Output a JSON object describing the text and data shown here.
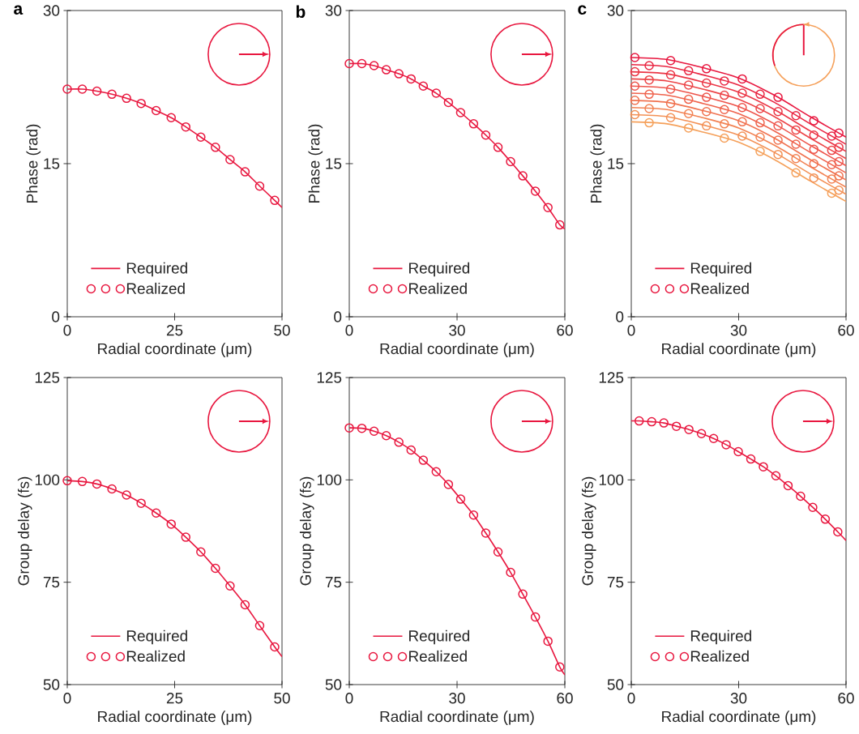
{
  "chart_data": [
    {
      "type": "line",
      "title": "a",
      "xlabel": "Radial coordinate (μm)",
      "ylabel": "Phase (rad)",
      "xlim": [
        0,
        50
      ],
      "ylim": [
        0,
        30
      ],
      "xticks": [
        0,
        25,
        50
      ],
      "yticks": [
        0,
        15,
        30
      ],
      "legend": "bottom left",
      "series": [
        {
          "name": "Required",
          "type": "line",
          "color": "#e8173f",
          "x": [
            0,
            3.5,
            6.9,
            10.4,
            13.8,
            17.2,
            20.7,
            24.2,
            27.6,
            31.1,
            34.5,
            37.9,
            41.4,
            44.8,
            48.3,
            50
          ],
          "values": [
            22.3,
            22.3,
            22.1,
            21.8,
            21.4,
            20.9,
            20.2,
            19.5,
            18.6,
            17.6,
            16.6,
            15.4,
            14.2,
            12.8,
            11.4,
            10.7
          ]
        },
        {
          "name": "Realized",
          "type": "scatter",
          "marker": "circle",
          "color": "#e8173f",
          "x": [
            0,
            3.5,
            6.9,
            10.4,
            13.8,
            17.2,
            20.7,
            24.2,
            27.6,
            31.1,
            34.5,
            37.9,
            41.4,
            44.8,
            48.3
          ],
          "values": [
            22.3,
            22.3,
            22.1,
            21.8,
            21.4,
            20.9,
            20.2,
            19.5,
            18.6,
            17.6,
            16.6,
            15.4,
            14.2,
            12.8,
            11.4
          ]
        }
      ]
    },
    {
      "type": "line",
      "title": "b",
      "xlabel": "Radial coordinate (μm)",
      "ylabel": "Phase (rad)",
      "xlim": [
        0,
        60
      ],
      "ylim": [
        0,
        30
      ],
      "xticks": [
        0,
        30,
        60
      ],
      "yticks": [
        0,
        15,
        30
      ],
      "legend": "bottom left",
      "series": [
        {
          "name": "Required",
          "type": "line",
          "color": "#e8173f",
          "x": [
            0,
            3.5,
            6.9,
            10.3,
            13.8,
            17.2,
            20.6,
            24.2,
            27.6,
            31.0,
            34.6,
            38.0,
            41.4,
            44.9,
            48.3,
            51.8,
            55.3,
            58.6,
            60
          ],
          "values": [
            24.8,
            24.8,
            24.6,
            24.2,
            23.8,
            23.3,
            22.6,
            21.9,
            21.0,
            20.0,
            18.9,
            17.8,
            16.6,
            15.2,
            13.8,
            12.3,
            10.7,
            9.0,
            8.6
          ]
        },
        {
          "name": "Realized",
          "type": "scatter",
          "marker": "circle",
          "color": "#e8173f",
          "x": [
            0,
            3.5,
            6.9,
            10.3,
            13.8,
            17.2,
            20.6,
            24.2,
            27.6,
            31.0,
            34.6,
            38.0,
            41.4,
            44.9,
            48.3,
            51.8,
            55.3,
            58.6
          ],
          "values": [
            24.8,
            24.8,
            24.6,
            24.2,
            23.8,
            23.3,
            22.6,
            21.9,
            21.0,
            20.0,
            18.9,
            17.8,
            16.6,
            15.2,
            13.8,
            12.3,
            10.7,
            9.0
          ]
        }
      ]
    },
    {
      "type": "line",
      "title": "c",
      "xlabel": "Radial coordinate (μm)",
      "ylabel": "Phase (rad)",
      "xlim": [
        0,
        60
      ],
      "ylim": [
        0,
        30
      ],
      "xticks": [
        0,
        30,
        60
      ],
      "yticks": [
        0,
        15,
        30
      ],
      "legend": "bottom left",
      "series": [
        {
          "name": "Required",
          "type": "line",
          "color": "#e8173f",
          "x": [
            0,
            10,
            20,
            30,
            40,
            50,
            60
          ],
          "values": [
            25.4,
            25.2,
            24.4,
            23.4,
            21.7,
            19.6,
            17.6
          ]
        },
        {
          "type": "line",
          "color": "#e92642",
          "x": [
            0,
            10,
            20,
            30,
            40,
            50,
            60
          ],
          "values": [
            24.7,
            24.5,
            23.7,
            22.7,
            21.0,
            18.9,
            16.9
          ]
        },
        {
          "type": "line",
          "color": "#eb3545",
          "x": [
            0,
            10,
            20,
            30,
            40,
            50,
            60
          ],
          "values": [
            24.0,
            23.8,
            23.0,
            22.0,
            20.3,
            18.2,
            16.2
          ]
        },
        {
          "type": "line",
          "color": "#ec4548",
          "x": [
            0,
            10,
            20,
            30,
            40,
            50,
            60
          ],
          "values": [
            23.3,
            23.1,
            22.3,
            21.3,
            19.6,
            17.5,
            15.5
          ]
        },
        {
          "type": "line",
          "color": "#ee544b",
          "x": [
            0,
            10,
            20,
            30,
            40,
            50,
            60
          ],
          "values": [
            22.6,
            22.4,
            21.6,
            20.6,
            18.9,
            16.8,
            14.8
          ]
        },
        {
          "type": "line",
          "color": "#ef634d",
          "x": [
            0,
            10,
            20,
            30,
            40,
            50,
            60
          ],
          "values": [
            21.9,
            21.7,
            20.9,
            19.9,
            18.2,
            16.1,
            14.1
          ]
        },
        {
          "type": "line",
          "color": "#f07250",
          "x": [
            0,
            10,
            20,
            30,
            40,
            50,
            60
          ],
          "values": [
            21.2,
            21.0,
            20.2,
            19.2,
            17.5,
            15.4,
            13.4
          ]
        },
        {
          "type": "line",
          "color": "#f28253",
          "x": [
            0,
            10,
            20,
            30,
            40,
            50,
            60
          ],
          "values": [
            20.5,
            20.3,
            19.5,
            18.5,
            16.8,
            14.7,
            12.7
          ]
        },
        {
          "type": "line",
          "color": "#f39156",
          "x": [
            0,
            10,
            20,
            30,
            40,
            50,
            60
          ],
          "values": [
            19.8,
            19.6,
            18.8,
            17.8,
            16.1,
            14.0,
            12.0
          ]
        },
        {
          "type": "line",
          "color": "#f5a05a",
          "x": [
            0,
            10,
            20,
            30,
            40,
            50,
            60
          ],
          "values": [
            19.1,
            18.9,
            18.1,
            17.1,
            15.4,
            13.3,
            11.3
          ]
        },
        {
          "name": "Realized",
          "type": "scatter",
          "marker": "circle",
          "color": "#e8173f",
          "x": [
            1,
            11,
            21,
            31,
            41,
            51,
            58
          ],
          "values": [
            25.4,
            25.1,
            24.3,
            23.3,
            21.5,
            19.2,
            18.0
          ]
        },
        {
          "type": "scatter",
          "marker": "circle",
          "color": "#e92642",
          "x": [
            5,
            16,
            26,
            36,
            46,
            56
          ],
          "values": [
            24.6,
            24.1,
            23.1,
            21.8,
            19.7,
            17.7
          ]
        },
        {
          "type": "scatter",
          "marker": "circle",
          "color": "#eb3545",
          "x": [
            1,
            11,
            21,
            31,
            41,
            51,
            58
          ],
          "values": [
            24.0,
            23.7,
            22.9,
            21.9,
            20.1,
            17.8,
            16.6
          ]
        },
        {
          "type": "scatter",
          "marker": "circle",
          "color": "#ec4548",
          "x": [
            5,
            16,
            26,
            36,
            46,
            56
          ],
          "values": [
            23.2,
            22.7,
            21.7,
            20.4,
            18.3,
            16.3
          ]
        },
        {
          "type": "scatter",
          "marker": "circle",
          "color": "#ee544b",
          "x": [
            1,
            11,
            21,
            31,
            41,
            51,
            58
          ],
          "values": [
            22.6,
            22.3,
            21.5,
            20.5,
            18.7,
            16.4,
            15.2
          ]
        },
        {
          "type": "scatter",
          "marker": "circle",
          "color": "#ef634d",
          "x": [
            5,
            16,
            26,
            36,
            46,
            56
          ],
          "values": [
            21.8,
            21.3,
            20.3,
            19.0,
            16.9,
            14.9
          ]
        },
        {
          "type": "scatter",
          "marker": "circle",
          "color": "#f07250",
          "x": [
            1,
            11,
            21,
            31,
            41,
            51,
            58
          ],
          "values": [
            21.2,
            20.9,
            20.1,
            19.1,
            17.3,
            15.0,
            13.8
          ]
        },
        {
          "type": "scatter",
          "marker": "circle",
          "color": "#f28253",
          "x": [
            5,
            16,
            26,
            36,
            46,
            56
          ],
          "values": [
            20.4,
            19.9,
            18.9,
            17.6,
            15.5,
            13.5
          ]
        },
        {
          "type": "scatter",
          "marker": "circle",
          "color": "#f39156",
          "x": [
            1,
            11,
            21,
            31,
            41,
            51,
            58
          ],
          "values": [
            19.8,
            19.5,
            18.7,
            17.7,
            15.9,
            13.6,
            12.4
          ]
        },
        {
          "type": "scatter",
          "marker": "circle",
          "color": "#f5a05a",
          "x": [
            5,
            16,
            26,
            36,
            46,
            56
          ],
          "values": [
            19.0,
            18.5,
            17.5,
            16.2,
            14.1,
            12.1
          ]
        }
      ]
    },
    {
      "type": "line",
      "xlabel": "Radial coordinate (μm)",
      "ylabel": "Group delay (fs)",
      "xlim": [
        0,
        50
      ],
      "ylim": [
        50,
        125
      ],
      "xticks": [
        0,
        25,
        50
      ],
      "yticks": [
        50,
        75,
        100,
        125
      ],
      "legend": "bottom left",
      "series": [
        {
          "name": "Required",
          "type": "line",
          "color": "#e8173f",
          "x": [
            0,
            3.5,
            6.9,
            10.4,
            13.8,
            17.2,
            20.7,
            24.2,
            27.6,
            31.1,
            34.5,
            37.9,
            41.4,
            44.8,
            48.3,
            50
          ],
          "values": [
            99.8,
            99.6,
            99.0,
            97.8,
            96.3,
            94.3,
            91.9,
            89.2,
            86.0,
            82.4,
            78.4,
            74.1,
            69.5,
            64.4,
            59.2,
            56.8
          ]
        },
        {
          "name": "Realized",
          "type": "scatter",
          "marker": "circle",
          "color": "#e8173f",
          "x": [
            0,
            3.5,
            6.9,
            10.4,
            13.8,
            17.2,
            20.7,
            24.2,
            27.6,
            31.1,
            34.5,
            37.9,
            41.4,
            44.8,
            48.3
          ],
          "values": [
            99.8,
            99.6,
            99.0,
            97.8,
            96.3,
            94.3,
            91.9,
            89.2,
            86.0,
            82.4,
            78.4,
            74.1,
            69.5,
            64.4,
            59.2
          ]
        }
      ]
    },
    {
      "type": "line",
      "xlabel": "Radial coordinate (μm)",
      "ylabel": "Group delay (fs)",
      "xlim": [
        0,
        60
      ],
      "ylim": [
        50,
        125
      ],
      "xticks": [
        0,
        30,
        60
      ],
      "yticks": [
        50,
        75,
        100,
        125
      ],
      "legend": "bottom left",
      "series": [
        {
          "name": "Required",
          "type": "line",
          "color": "#e8173f",
          "x": [
            0,
            3.5,
            6.9,
            10.3,
            13.8,
            17.2,
            20.6,
            24.2,
            27.6,
            31.0,
            34.6,
            38.0,
            41.4,
            44.9,
            48.3,
            51.8,
            55.3,
            58.6,
            60
          ],
          "values": [
            112.7,
            112.6,
            111.9,
            110.8,
            109.2,
            107.3,
            104.8,
            102.0,
            98.9,
            95.3,
            91.4,
            87.0,
            82.4,
            77.4,
            72.1,
            66.5,
            60.6,
            54.3,
            52.4
          ]
        },
        {
          "name": "Realized",
          "type": "scatter",
          "marker": "circle",
          "color": "#e8173f",
          "x": [
            0,
            3.5,
            6.9,
            10.3,
            13.8,
            17.2,
            20.6,
            24.2,
            27.6,
            31.0,
            34.6,
            38.0,
            41.4,
            44.9,
            48.3,
            51.8,
            55.3,
            58.6
          ],
          "values": [
            112.7,
            112.6,
            111.9,
            110.8,
            109.2,
            107.3,
            104.8,
            102.0,
            98.9,
            95.3,
            91.4,
            87.0,
            82.4,
            77.4,
            72.1,
            66.5,
            60.6,
            54.3
          ]
        }
      ]
    },
    {
      "type": "line",
      "xlabel": "Radial coordinate (μm)",
      "ylabel": "Group delay (fs)",
      "xlim": [
        0,
        60
      ],
      "ylim": [
        50,
        125
      ],
      "xticks": [
        0,
        30,
        60
      ],
      "yticks": [
        50,
        75,
        100,
        125
      ],
      "legend": "bottom left",
      "series": [
        {
          "name": "Required",
          "type": "line",
          "color": "#e8173f",
          "x": [
            0,
            2.2,
            5.7,
            9.1,
            12.6,
            16.1,
            19.6,
            23.0,
            26.5,
            29.9,
            33.4,
            36.9,
            40.4,
            43.8,
            47.3,
            50.7,
            54.2,
            57.7,
            60
          ],
          "values": [
            114.4,
            114.4,
            114.2,
            113.9,
            113.1,
            112.3,
            111.3,
            110.1,
            108.6,
            106.9,
            105.1,
            103.2,
            101.0,
            98.6,
            96.0,
            93.3,
            90.4,
            87.3,
            85.2
          ]
        },
        {
          "name": "Realized",
          "type": "scatter",
          "marker": "circle",
          "color": "#e8173f",
          "x": [
            2.2,
            5.7,
            9.1,
            12.6,
            16.1,
            19.6,
            23.0,
            26.5,
            29.9,
            33.4,
            36.9,
            40.4,
            43.8,
            47.3,
            50.7,
            54.2,
            57.7
          ],
          "values": [
            114.4,
            114.2,
            113.9,
            113.1,
            112.3,
            111.3,
            110.1,
            108.6,
            106.9,
            105.1,
            103.2,
            101.0,
            98.6,
            96.0,
            93.3,
            90.4,
            87.3
          ]
        }
      ]
    }
  ]
}
